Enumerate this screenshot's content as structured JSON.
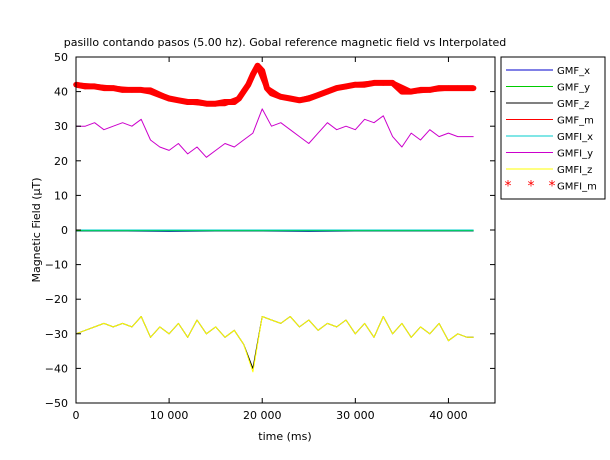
{
  "chart_data": {
    "type": "line",
    "title": "pasillo contando pasos (5.00 hz). Gobal reference magnetic field vs Interpolated",
    "xlabel": "time (ms)",
    "ylabel": "Magnetic Field (µT)",
    "xlim": [
      0,
      45000
    ],
    "ylim": [
      -50,
      50
    ],
    "x_ticks": [
      0,
      10000,
      20000,
      30000,
      40000
    ],
    "x_tick_labels": [
      "0",
      "10 000",
      "20 000",
      "30 000",
      "40 000"
    ],
    "y_ticks": [
      -50,
      -40,
      -30,
      -20,
      -10,
      0,
      10,
      20,
      30,
      40,
      50
    ],
    "y_tick_labels": [
      "−50",
      "−40",
      "−30",
      "−20",
      "−10",
      "0",
      "10",
      "20",
      "30",
      "40",
      "50"
    ],
    "grid": false,
    "legend_position": "outside-right",
    "series": [
      {
        "name": "GMF_x",
        "color": "#0000cc",
        "style": "line",
        "x": [
          0,
          5000,
          10000,
          15000,
          20000,
          25000,
          30000,
          35000,
          40000,
          42700
        ],
        "y": [
          -0.3,
          -0.3,
          -0.4,
          -0.3,
          -0.3,
          -0.4,
          -0.3,
          -0.3,
          -0.3,
          -0.3
        ]
      },
      {
        "name": "GMF_y",
        "color": "#00cc00",
        "style": "line",
        "x": [
          0,
          5000,
          10000,
          15000,
          20000,
          25000,
          30000,
          35000,
          40000,
          42700
        ],
        "y": [
          -0.2,
          -0.2,
          -0.2,
          -0.2,
          -0.2,
          -0.2,
          -0.2,
          -0.2,
          -0.2,
          -0.2
        ]
      },
      {
        "name": "GMF_z",
        "color": "#000000",
        "style": "line",
        "x": [
          0,
          1000,
          2000,
          3000,
          4000,
          5000,
          6000,
          7000,
          8000,
          9000,
          10000,
          11000,
          12000,
          13000,
          14000,
          15000,
          16000,
          17000,
          18000,
          19000,
          20000,
          21000,
          22000,
          23000,
          24000,
          25000,
          26000,
          27000,
          28000,
          29000,
          30000,
          31000,
          32000,
          33000,
          34000,
          35000,
          36000,
          37000,
          38000,
          39000,
          40000,
          41000,
          42000,
          42700
        ],
        "y": [
          -30,
          -29,
          -28,
          -27,
          -28,
          -27,
          -28,
          -25,
          -31,
          -28,
          -30,
          -27,
          -31,
          -26,
          -30,
          -28,
          -31,
          -29,
          -33,
          -40,
          -25,
          -26,
          -27,
          -25,
          -28,
          -26,
          -29,
          -27,
          -28,
          -26,
          -30,
          -27,
          -31,
          -25,
          -30,
          -27,
          -31,
          -28,
          -30,
          -27,
          -32,
          -30,
          -31,
          -31
        ]
      },
      {
        "name": "GMF_m",
        "color": "#ff0000",
        "style": "line",
        "x": [
          0,
          2000,
          4000,
          6000,
          8000,
          10000,
          12000,
          14000,
          16000,
          17500,
          18500,
          19500,
          20500,
          22000,
          24000,
          26000,
          28000,
          30000,
          32000,
          34000,
          36000,
          38000,
          40000,
          42700
        ],
        "y": [
          42,
          41.5,
          41,
          40.5,
          40.5,
          38,
          37,
          36.5,
          36.5,
          38,
          42,
          47.5,
          41,
          38.5,
          37.5,
          39,
          41,
          42,
          42.5,
          42.5,
          40,
          40.5,
          41,
          41
        ]
      },
      {
        "name": "GMFI_x",
        "color": "#00cccc",
        "style": "line",
        "x": [
          0,
          5000,
          10000,
          15000,
          20000,
          25000,
          30000,
          35000,
          40000,
          42700
        ],
        "y": [
          0,
          0,
          0,
          0,
          0,
          0,
          0,
          0,
          0,
          0
        ]
      },
      {
        "name": "GMFI_y",
        "color": "#cc00cc",
        "style": "line",
        "x": [
          0,
          1000,
          2000,
          3000,
          4000,
          5000,
          6000,
          7000,
          8000,
          9000,
          10000,
          11000,
          12000,
          13000,
          14000,
          15000,
          16000,
          17000,
          18000,
          19000,
          20000,
          21000,
          22000,
          23000,
          24000,
          25000,
          26000,
          27000,
          28000,
          29000,
          30000,
          31000,
          32000,
          33000,
          34000,
          35000,
          36000,
          37000,
          38000,
          39000,
          40000,
          41000,
          42000,
          42700
        ],
        "y": [
          30,
          30,
          31,
          29,
          30,
          31,
          30,
          32,
          26,
          24,
          23,
          25,
          22,
          24,
          21,
          23,
          25,
          24,
          26,
          28,
          35,
          30,
          31,
          29,
          27,
          25,
          28,
          31,
          29,
          30,
          29,
          32,
          31,
          33,
          27,
          24,
          28,
          26,
          29,
          27,
          28,
          27,
          27,
          27
        ]
      },
      {
        "name": "GMFI_z",
        "color": "#ffff00",
        "style": "line",
        "x": [
          0,
          1000,
          2000,
          3000,
          4000,
          5000,
          6000,
          7000,
          8000,
          9000,
          10000,
          11000,
          12000,
          13000,
          14000,
          15000,
          16000,
          17000,
          18000,
          19000,
          20000,
          21000,
          22000,
          23000,
          24000,
          25000,
          26000,
          27000,
          28000,
          29000,
          30000,
          31000,
          32000,
          33000,
          34000,
          35000,
          36000,
          37000,
          38000,
          39000,
          40000,
          41000,
          42000,
          42700
        ],
        "y": [
          -30,
          -29,
          -28,
          -27,
          -28,
          -27,
          -28,
          -25,
          -31,
          -28,
          -30,
          -27,
          -31,
          -26,
          -30,
          -28,
          -31,
          -29,
          -33,
          -41,
          -25,
          -26,
          -27,
          -25,
          -28,
          -26,
          -29,
          -27,
          -28,
          -26,
          -30,
          -27,
          -31,
          -25,
          -30,
          -27,
          -31,
          -28,
          -30,
          -27,
          -32,
          -30,
          -31,
          -31
        ]
      },
      {
        "name": "GMFI_m",
        "color": "#ff0000",
        "style": "markers",
        "x": [
          0,
          1000,
          2000,
          3000,
          4000,
          5000,
          6000,
          7000,
          8000,
          9000,
          10000,
          11000,
          12000,
          13000,
          14000,
          15000,
          16000,
          17000,
          17500,
          18000,
          18500,
          19000,
          19500,
          20000,
          20500,
          21000,
          22000,
          23000,
          24000,
          25000,
          26000,
          27000,
          28000,
          29000,
          30000,
          31000,
          32000,
          33000,
          34000,
          35000,
          36000,
          37000,
          38000,
          39000,
          40000,
          41000,
          42000,
          42700
        ],
        "y": [
          42,
          41.5,
          41.5,
          41,
          41,
          40.5,
          40.5,
          40.5,
          40,
          39,
          38,
          37.5,
          37,
          37,
          36.5,
          36.5,
          37,
          37,
          38,
          40,
          42,
          45,
          47.5,
          46,
          41,
          39.5,
          38.5,
          38,
          37.5,
          38,
          39,
          40,
          41,
          41.5,
          42,
          42,
          42.5,
          42.5,
          42.5,
          40,
          40,
          40.5,
          40.5,
          41,
          41,
          41,
          41,
          41
        ]
      }
    ]
  }
}
